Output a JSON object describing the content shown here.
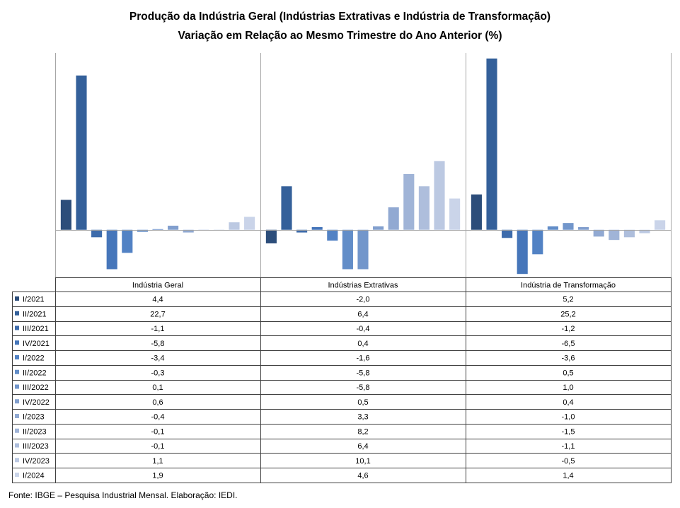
{
  "chart_data": {
    "type": "bar",
    "title": "Produção da Indústria Geral (Indústrias Extrativas e Indústria de Transformação)",
    "subtitle": "Variação em Relação ao Mesmo Trimestre do Ano Anterior (%)",
    "categories": [
      "Indústria Geral",
      "Indústrias Extrativas",
      "Indústria de Transformação"
    ],
    "series": [
      {
        "name": "I/2021",
        "color": "#2C4D7A",
        "values": [
          4.4,
          -2.0,
          5.2
        ]
      },
      {
        "name": "II/2021",
        "color": "#34609A",
        "values": [
          22.7,
          6.4,
          25.2
        ]
      },
      {
        "name": "III/2021",
        "color": "#3D6BAB",
        "values": [
          -1.1,
          -0.4,
          -1.2
        ]
      },
      {
        "name": "IV/2021",
        "color": "#4676BA",
        "values": [
          -5.8,
          0.4,
          -6.5
        ]
      },
      {
        "name": "I/2022",
        "color": "#5282C4",
        "values": [
          -3.4,
          -1.6,
          -3.6
        ]
      },
      {
        "name": "II/2022",
        "color": "#628DC8",
        "values": [
          -0.3,
          -5.8,
          0.5
        ]
      },
      {
        "name": "III/2022",
        "color": "#7296CB",
        "values": [
          0.1,
          -5.8,
          1.0
        ]
      },
      {
        "name": "IV/2022",
        "color": "#829FCE",
        "values": [
          0.6,
          0.5,
          0.4
        ]
      },
      {
        "name": "I/2023",
        "color": "#91A9D2",
        "values": [
          -0.4,
          3.3,
          -1.0
        ]
      },
      {
        "name": "II/2023",
        "color": "#A0B4D7",
        "values": [
          -0.1,
          8.2,
          -1.5
        ]
      },
      {
        "name": "III/2023",
        "color": "#AEBEDC",
        "values": [
          -0.1,
          6.4,
          -1.1
        ]
      },
      {
        "name": "IV/2023",
        "color": "#BCC9E2",
        "values": [
          1.1,
          10.1,
          -0.5
        ]
      },
      {
        "name": "I/2024",
        "color": "#CAD4E9",
        "values": [
          1.9,
          4.6,
          1.4
        ]
      }
    ],
    "ylim": [
      -7,
      26
    ],
    "grid": false,
    "data_table": true,
    "legend": "bottom-left"
  },
  "source": "Fonte: IBGE – Pesquisa Industrial Mensal. Elaboração: IEDI."
}
